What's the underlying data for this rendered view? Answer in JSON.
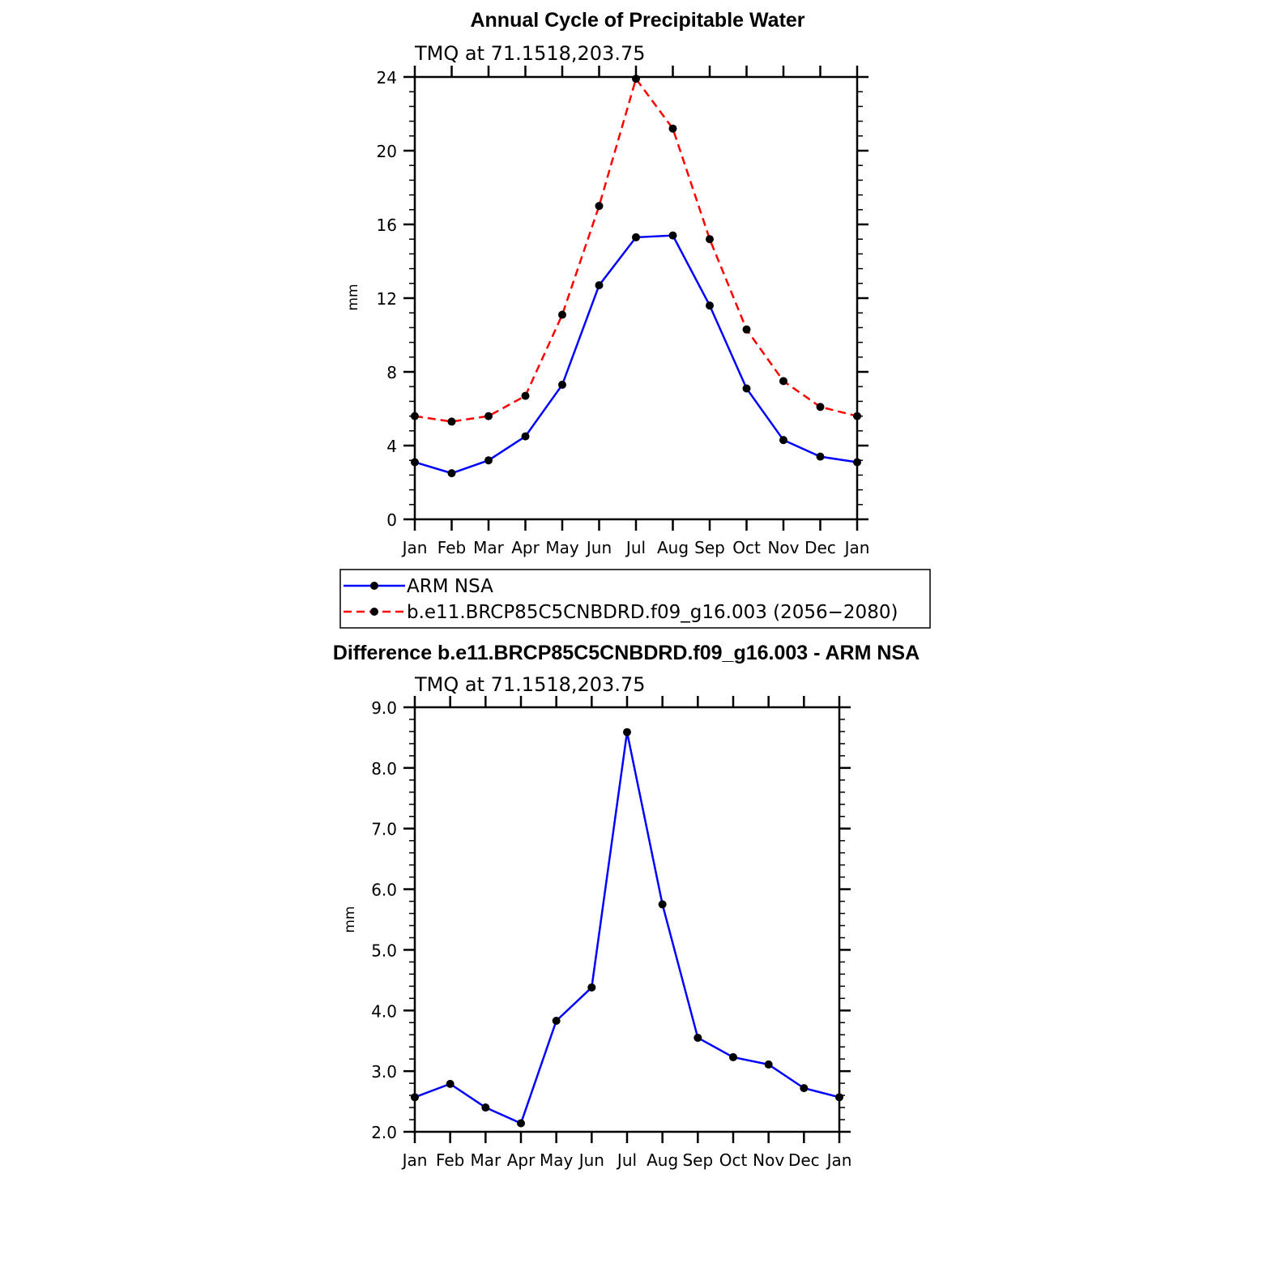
{
  "chart_data": [
    {
      "type": "line",
      "title": "Annual Cycle of Precipitable Water",
      "subtitle": "TMQ at 71.1518,203.75",
      "xlabel": "",
      "ylabel": "mm",
      "categories": [
        "Jan",
        "Feb",
        "Mar",
        "Apr",
        "May",
        "Jun",
        "Jul",
        "Aug",
        "Sep",
        "Oct",
        "Nov",
        "Dec",
        "Jan"
      ],
      "ylim": [
        0,
        24
      ],
      "yticks": [
        "0",
        "4",
        "8",
        "12",
        "16",
        "20",
        "24"
      ],
      "grid": false,
      "legend": "below",
      "series": [
        {
          "name": "ARM NSA",
          "color": "#0000ff",
          "dash": "solid",
          "values": [
            3.1,
            2.5,
            3.2,
            4.5,
            7.3,
            12.7,
            15.3,
            15.4,
            11.6,
            7.1,
            4.3,
            3.4,
            3.1
          ]
        },
        {
          "name": "b.e11.BRCP85C5CNBDRD.f09_g16.003 (2056−2080)",
          "color": "#ff0000",
          "dash": "dashed",
          "values": [
            5.6,
            5.3,
            5.6,
            6.7,
            11.1,
            17.0,
            23.9,
            21.2,
            15.2,
            10.3,
            7.5,
            6.1,
            5.6
          ]
        }
      ]
    },
    {
      "type": "line",
      "title": "Difference b.e11.BRCP85C5CNBDRD.f09_g16.003 - ARM NSA",
      "subtitle": "TMQ at 71.1518,203.75",
      "xlabel": "",
      "ylabel": "mm",
      "categories": [
        "Jan",
        "Feb",
        "Mar",
        "Apr",
        "May",
        "Jun",
        "Jul",
        "Aug",
        "Sep",
        "Oct",
        "Nov",
        "Dec",
        "Jan"
      ],
      "ylim": [
        2,
        9
      ],
      "yticks": [
        "2.0",
        "3.0",
        "4.0",
        "5.0",
        "6.0",
        "7.0",
        "8.0",
        "9.0"
      ],
      "grid": false,
      "series": [
        {
          "color": "#0000ff",
          "dash": "solid",
          "values": [
            2.57,
            2.79,
            2.4,
            2.14,
            3.83,
            4.38,
            8.59,
            5.75,
            3.55,
            3.23,
            3.11,
            2.72,
            2.57
          ]
        }
      ]
    }
  ]
}
